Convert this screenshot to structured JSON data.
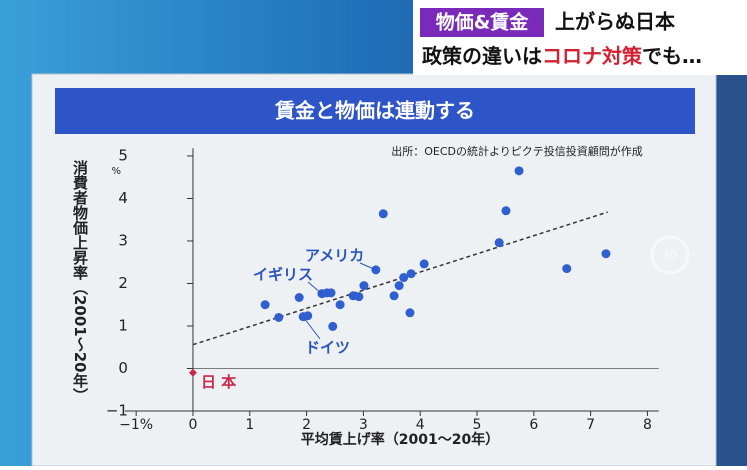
{
  "banner": {
    "tag": "物価&賃金",
    "headline": "上がらぬ日本",
    "sub_parts": [
      "政策の違いは",
      "コロナ対策",
      "でも…"
    ]
  },
  "chart_data": {
    "type": "scatter",
    "title": "賃金と物価は連動する",
    "source": "出所：OECDの統計よりピクテ投信投資顧問が作成",
    "x_label": "平均賃上げ率（2001〜20年）",
    "y_label": "消費者物価上昇率（2001〜20年）",
    "y_unit": "%",
    "xlim": [
      -1.2,
      8.2
    ],
    "ylim": [
      -1,
      5.3
    ],
    "xticks": [
      {
        "value": -1,
        "label": "−1%"
      },
      0,
      1,
      2,
      3,
      4,
      5,
      6,
      7,
      8
    ],
    "yticks": [
      {
        "value": -1,
        "label": "−1"
      },
      0,
      1,
      2,
      3,
      4,
      5
    ],
    "series": [
      {
        "color": "#2f5fd0",
        "x": [
          1.27,
          1.51,
          1.87,
          1.94,
          2.02,
          2.27,
          2.36,
          2.43,
          2.46,
          2.59,
          2.82,
          2.92,
          3.01,
          3.22,
          3.35,
          3.54,
          3.63,
          3.71,
          3.84,
          3.82,
          4.07,
          5.39,
          5.51,
          5.74,
          6.58,
          7.27
        ],
        "y": [
          1.5,
          1.2,
          1.67,
          1.22,
          1.24,
          1.76,
          1.78,
          1.78,
          0.99,
          1.5,
          1.71,
          1.69,
          1.95,
          2.32,
          3.64,
          1.71,
          1.95,
          2.14,
          2.23,
          1.31,
          2.46,
          2.96,
          3.71,
          4.65,
          2.35,
          2.7
        ]
      },
      {
        "name": "日 本",
        "color": "#c8284a",
        "x": [
          0
        ],
        "y": [
          -0.1
        ]
      }
    ],
    "trend": {
      "x": [
        0,
        7.3
      ],
      "y": [
        0.56,
        3.68
      ]
    },
    "annotations": [
      "アメリカ",
      "イギリス",
      "ドイツ"
    ]
  }
}
